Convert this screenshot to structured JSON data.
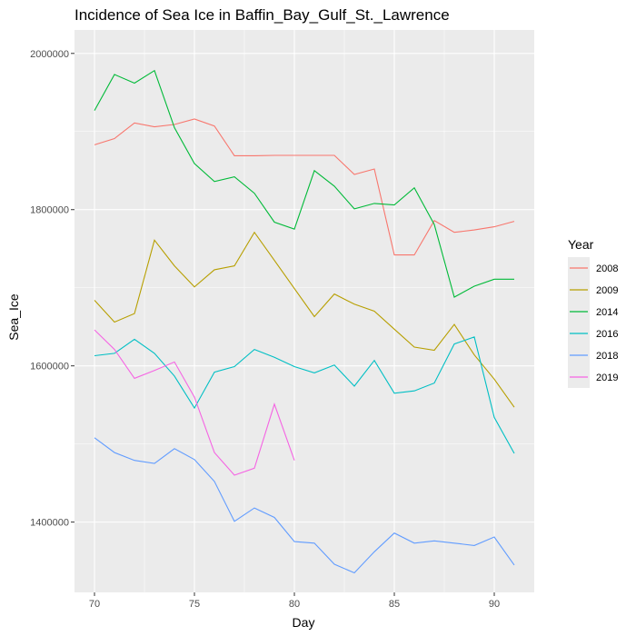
{
  "chart_data": {
    "type": "line",
    "title": "Incidence of Sea Ice in Baffin_Bay_Gulf_St._Lawrence",
    "xlabel": "Day",
    "ylabel": "Sea_Ice",
    "xlim": [
      69,
      92
    ],
    "ylim": [
      1310000,
      2030000
    ],
    "xticks": [
      70,
      75,
      80,
      85,
      90
    ],
    "xtick_labels": [
      "70",
      "75",
      "80",
      "85",
      "90"
    ],
    "yticks": [
      1400000,
      1600000,
      1800000,
      2000000
    ],
    "ytick_labels": [
      "1400000",
      "1600000",
      "1800000",
      "2000000"
    ],
    "grid": true,
    "legend": {
      "title": "Year",
      "placement": "right"
    },
    "series": [
      {
        "name": "2008",
        "color": "#F8766D",
        "x": [
          70,
          71,
          72,
          73,
          74,
          75,
          76,
          77,
          78,
          79,
          80,
          81,
          82,
          83,
          84,
          85,
          86,
          87,
          88,
          89,
          90,
          91
        ],
        "y": [
          1883000,
          1891000,
          1911000,
          1906000,
          1909000,
          1916000,
          1907000,
          1869000,
          1869000,
          1869500,
          1869500,
          1869500,
          1869500,
          1845000,
          1852000,
          1742000,
          1742000,
          1786000,
          1771000,
          1774000,
          1778000,
          1785000
        ]
      },
      {
        "name": "2009",
        "color": "#B79F00",
        "x": [
          70,
          71,
          72,
          73,
          74,
          75,
          76,
          77,
          78,
          79,
          80,
          81,
          82,
          83,
          84,
          85,
          86,
          87,
          88,
          89,
          90,
          91
        ],
        "y": [
          1684000,
          1656000,
          1667000,
          1761000,
          1728000,
          1701000,
          1723000,
          1728000,
          1771000,
          1735000,
          1699000,
          1663000,
          1692000,
          1679000,
          1670000,
          1647000,
          1624000,
          1620000,
          1653000,
          1614000,
          1583000,
          1547000
        ]
      },
      {
        "name": "2014",
        "color": "#00BA38",
        "x": [
          70,
          71,
          72,
          73,
          74,
          75,
          76,
          77,
          78,
          79,
          80,
          81,
          82,
          83,
          84,
          85,
          86,
          87,
          88,
          89,
          90,
          91
        ],
        "y": [
          1927000,
          1973000,
          1962000,
          1978000,
          1905000,
          1859000,
          1836000,
          1842000,
          1821000,
          1784000,
          1775000,
          1850000,
          1830000,
          1801000,
          1808000,
          1806000,
          1828000,
          1781000,
          1688000,
          1702000,
          1711000,
          1711000
        ]
      },
      {
        "name": "2016",
        "color": "#00BFC4",
        "x": [
          70,
          71,
          72,
          73,
          74,
          75,
          76,
          77,
          78,
          79,
          80,
          81,
          82,
          83,
          84,
          85,
          86,
          87,
          88,
          89,
          90,
          91
        ],
        "y": [
          1613000,
          1616000,
          1634000,
          1616000,
          1587000,
          1546000,
          1592000,
          1599000,
          1621000,
          1611000,
          1599000,
          1591000,
          1601000,
          1574000,
          1607000,
          1565000,
          1568000,
          1578000,
          1628000,
          1637000,
          1534000,
          1488000
        ]
      },
      {
        "name": "2018",
        "color": "#619CFF",
        "x": [
          70,
          71,
          72,
          73,
          74,
          75,
          76,
          77,
          78,
          79,
          80,
          81,
          82,
          83,
          84,
          85,
          86,
          87,
          88,
          89,
          90,
          91
        ],
        "y": [
          1508000,
          1489000,
          1479000,
          1475000,
          1494000,
          1480000,
          1452000,
          1401000,
          1418000,
          1406000,
          1375000,
          1373000,
          1346000,
          1335000,
          1362000,
          1386000,
          1373000,
          1376000,
          1373000,
          1370000,
          1381000,
          1345000
        ]
      },
      {
        "name": "2019",
        "color": "#F564E3",
        "x": [
          70,
          71,
          72,
          73,
          74,
          75,
          76,
          77,
          78,
          79,
          80
        ],
        "y": [
          1646000,
          1621000,
          1584000,
          1594000,
          1605000,
          1560000,
          1489000,
          1460000,
          1469000,
          1551000,
          1479000
        ]
      }
    ]
  }
}
